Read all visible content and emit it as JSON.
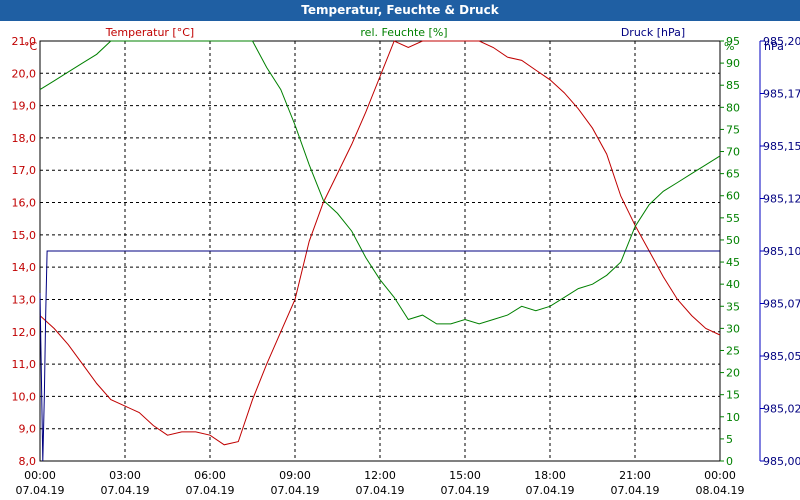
{
  "window": {
    "title": "Temperatur, Feuchte & Druck"
  },
  "colors": {
    "temperature": "#c00000",
    "humidity": "#008000",
    "pressure": "#000080",
    "axis_right": "#0000c0"
  },
  "chart_data": {
    "type": "line",
    "title": "Temperatur, Feuchte & Druck",
    "grid": true,
    "axes": {
      "left": {
        "label": "Temperatur [°C]",
        "unit": "°C",
        "range": [
          8.0,
          21.0
        ],
        "ticks": [
          "8,0",
          "9,0",
          "10,0",
          "11,0",
          "12,0",
          "13,0",
          "14,0",
          "15,0",
          "16,0",
          "17,0",
          "18,0",
          "19,0",
          "20,0",
          "21,0"
        ]
      },
      "right1": {
        "label": "rel. Feuchte [%]",
        "unit": "%",
        "range": [
          0,
          95
        ],
        "ticks": [
          "0",
          "5",
          "10",
          "15",
          "20",
          "25",
          "30",
          "35",
          "40",
          "45",
          "50",
          "55",
          "60",
          "65",
          "70",
          "75",
          "80",
          "85",
          "90",
          "95"
        ]
      },
      "right2": {
        "label": "Druck [hPa]",
        "unit": "hPa",
        "range": [
          985.0,
          985.2
        ],
        "ticks": [
          "985,00",
          "985,02",
          "985,05",
          "985,07",
          "985,10",
          "985,12",
          "985,15",
          "985,17",
          "985,20"
        ]
      },
      "x": {
        "range": [
          "07.04.19 00:00",
          "08.04.19 00:00"
        ],
        "ticks": [
          {
            "time": "00:00",
            "date": "07.04.19"
          },
          {
            "time": "03:00",
            "date": "07.04.19"
          },
          {
            "time": "06:00",
            "date": "07.04.19"
          },
          {
            "time": "09:00",
            "date": "07.04.19"
          },
          {
            "time": "12:00",
            "date": "07.04.19"
          },
          {
            "time": "15:00",
            "date": "07.04.19"
          },
          {
            "time": "18:00",
            "date": "07.04.19"
          },
          {
            "time": "21:00",
            "date": "07.04.19"
          },
          {
            "time": "00:00",
            "date": "08.04.19"
          }
        ]
      }
    },
    "series": [
      {
        "name": "Temperatur [°C]",
        "axis": "left",
        "x": [
          0,
          0.5,
          1,
          1.5,
          2,
          2.5,
          3,
          3.5,
          4,
          4.5,
          5,
          5.5,
          6,
          6.5,
          7,
          7.5,
          8,
          8.5,
          9,
          9.5,
          10,
          10.5,
          11,
          11.5,
          12,
          12.5,
          13,
          13.5,
          14,
          14.5,
          15,
          15.5,
          16,
          16.5,
          17,
          17.5,
          18,
          18.5,
          19,
          19.5,
          20,
          20.5,
          21,
          21.5,
          22,
          22.5,
          23,
          23.5,
          24
        ],
        "values": [
          12.5,
          12.1,
          11.6,
          11.0,
          10.4,
          9.9,
          9.7,
          9.5,
          9.1,
          8.8,
          8.9,
          8.9,
          8.8,
          8.5,
          8.6,
          9.9,
          11.0,
          12.0,
          13.0,
          14.8,
          16.0,
          16.9,
          17.8,
          18.8,
          19.9,
          21.1,
          20.8,
          21.5,
          21.2,
          21.4,
          21.7,
          21.2,
          20.8,
          20.5,
          20.4,
          20.1,
          19.8,
          19.4,
          18.9,
          18.3,
          17.5,
          16.2,
          15.3,
          14.5,
          13.7,
          13.0,
          12.5,
          12.1,
          11.9
        ]
      },
      {
        "name": "rel. Feuchte [%]",
        "axis": "right1",
        "x": [
          0,
          0.5,
          1,
          1.5,
          2,
          2.5,
          3,
          3.5,
          4,
          4.5,
          5,
          5.5,
          6,
          6.5,
          7,
          7.5,
          8,
          8.5,
          9,
          9.5,
          10,
          10.5,
          11,
          11.5,
          12,
          12.5,
          13,
          13.5,
          14,
          14.5,
          15,
          15.5,
          16,
          16.5,
          17,
          17.5,
          18,
          18.5,
          19,
          19.5,
          20,
          20.5,
          21,
          21.5,
          22,
          22.5,
          23,
          23.5,
          24
        ],
        "values": [
          84,
          86,
          88,
          90,
          92,
          95,
          98,
          98,
          98,
          98,
          98,
          98,
          98,
          98,
          98,
          97,
          89,
          84,
          76,
          67,
          59,
          56,
          52,
          46,
          41,
          37,
          32,
          33,
          31,
          31,
          32,
          31,
          32,
          33,
          35,
          34,
          35,
          37,
          39,
          40,
          42,
          45,
          53,
          58,
          61,
          63,
          65,
          67,
          69
        ]
      },
      {
        "name": "Druck [hPa]",
        "axis": "right2",
        "x": [
          0,
          0.05,
          0.1,
          0.15,
          0.2,
          0.25,
          0.3,
          0.35,
          0.4,
          0.5,
          1,
          3,
          6,
          9,
          12,
          15,
          18,
          21,
          24
        ],
        "values": [
          985.08,
          985.04,
          985.0,
          985.03,
          985.07,
          985.1,
          985.1,
          985.1,
          985.1,
          985.1,
          985.1,
          985.1,
          985.1,
          985.1,
          985.1,
          985.1,
          985.1,
          985.1,
          985.1
        ]
      }
    ]
  }
}
